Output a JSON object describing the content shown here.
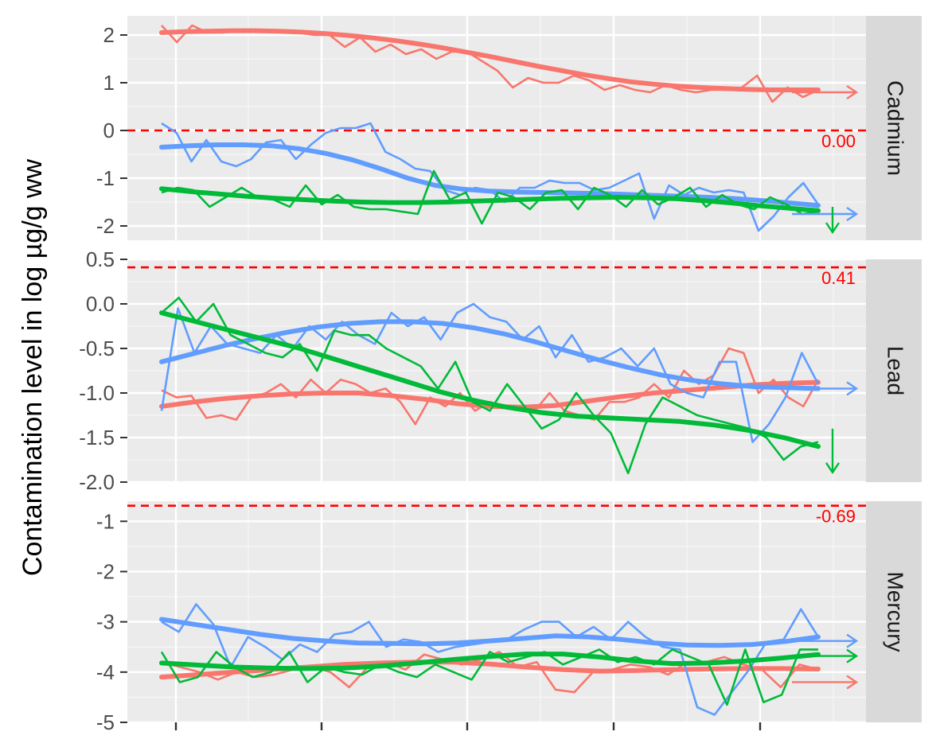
{
  "chart_data": {
    "type": "line",
    "title": "",
    "xlabel": "",
    "ylabel": "Contamination level in log µg/g ww",
    "x_ticks": [
      "",
      "",
      "",
      "",
      ""
    ],
    "x_range": [
      0,
      46
    ],
    "grid": true,
    "legend": "none",
    "colors": {
      "red": "#f8766d",
      "green": "#00ba38",
      "blue": "#619cff",
      "reference": "#ff0000"
    },
    "panels": [
      {
        "name": "Cadmium",
        "ylim": [
          -2.3,
          2.4
        ],
        "y_ticks": [
          2,
          1,
          0,
          -1,
          -2
        ],
        "y_tick_labels": [
          "2",
          "1",
          "0",
          "-1",
          "-2"
        ],
        "reference": {
          "value": 0.0,
          "label": "0.00"
        },
        "series": [
          {
            "color": "red",
            "raw": [
              2.2,
              1.85,
              2.2,
              2.05,
              2.05,
              2.1,
              2.1,
              2.1,
              2.1,
              2.05,
              2.0,
              2.0,
              1.75,
              1.95,
              1.65,
              1.8,
              1.6,
              1.7,
              1.5,
              1.65,
              1.65,
              1.45,
              1.25,
              0.9,
              1.1,
              1.0,
              1.0,
              1.15,
              1.05,
              0.85,
              0.95,
              0.85,
              0.8,
              0.95,
              0.85,
              0.8,
              0.85,
              0.85,
              0.9,
              1.15,
              0.6,
              0.9,
              0.7,
              0.85
            ],
            "smooth": [
              2.05,
              2.07,
              2.08,
              2.09,
              2.09,
              2.08,
              2.06,
              2.03,
              1.99,
              1.94,
              1.88,
              1.81,
              1.73,
              1.64,
              1.55,
              1.45,
              1.35,
              1.26,
              1.17,
              1.09,
              1.02,
              0.97,
              0.93,
              0.9,
              0.88,
              0.86,
              0.85,
              0.85,
              0.85
            ],
            "trend_arrow": "right",
            "arrow_value": 0.8
          },
          {
            "color": "blue",
            "raw": [
              0.15,
              -0.05,
              -0.65,
              -0.2,
              -0.65,
              -0.75,
              -0.6,
              -0.25,
              -0.2,
              -0.6,
              -0.3,
              -0.05,
              0.05,
              0.05,
              0.15,
              -0.45,
              -0.6,
              -0.8,
              -0.85,
              -1.25,
              -1.35,
              -1.2,
              -1.25,
              -1.5,
              -1.2,
              -1.2,
              -1.05,
              -1.1,
              -1.1,
              -1.25,
              -1.2,
              -1.05,
              -0.9,
              -1.85,
              -1.15,
              -1.35,
              -1.2,
              -1.3,
              -1.25,
              -1.3,
              -2.1,
              -1.8,
              -1.4,
              -1.1,
              -1.55
            ],
            "smooth": [
              -0.35,
              -0.32,
              -0.3,
              -0.3,
              -0.32,
              -0.38,
              -0.48,
              -0.62,
              -0.8,
              -1.0,
              -1.15,
              -1.23,
              -1.27,
              -1.29,
              -1.3,
              -1.31,
              -1.32,
              -1.34,
              -1.36,
              -1.38,
              -1.4,
              -1.43,
              -1.47,
              -1.52,
              -1.57
            ],
            "trend_arrow": "right",
            "arrow_value": -1.75
          },
          {
            "color": "green",
            "raw": [
              -1.3,
              -1.2,
              -1.25,
              -1.6,
              -1.4,
              -1.2,
              -1.4,
              -1.45,
              -1.6,
              -1.15,
              -1.55,
              -1.35,
              -1.6,
              -1.65,
              -1.65,
              -1.7,
              -1.75,
              -0.85,
              -1.45,
              -1.3,
              -1.95,
              -1.3,
              -1.4,
              -1.65,
              -1.3,
              -1.25,
              -1.65,
              -1.2,
              -1.35,
              -1.6,
              -1.25,
              -1.55,
              -1.4,
              -1.2,
              -1.6,
              -1.35,
              -1.55,
              -1.65,
              -1.4,
              -1.55,
              -1.75,
              -1.7
            ],
            "smooth": [
              -1.22,
              -1.28,
              -1.33,
              -1.38,
              -1.42,
              -1.45,
              -1.48,
              -1.5,
              -1.51,
              -1.51,
              -1.5,
              -1.48,
              -1.46,
              -1.44,
              -1.42,
              -1.41,
              -1.4,
              -1.41,
              -1.43,
              -1.47,
              -1.52,
              -1.58,
              -1.63,
              -1.68
            ],
            "trend_arrow": "down",
            "arrow_value": -1.6
          }
        ]
      },
      {
        "name": "Lead",
        "ylim": [
          -2.0,
          0.5
        ],
        "y_ticks": [
          0.5,
          0.0,
          -0.5,
          -1.0,
          -1.5,
          -2.0
        ],
        "y_tick_labels": [
          "0.5",
          "0.0",
          "-0.5",
          "-1.0",
          "-1.5",
          "-2.0"
        ],
        "reference": {
          "value": 0.41,
          "label": "0.41"
        },
        "series": [
          {
            "color": "red",
            "raw": [
              -0.97,
              -1.05,
              -1.03,
              -1.28,
              -1.25,
              -1.3,
              -1.05,
              -1.0,
              -0.9,
              -1.05,
              -0.85,
              -1.0,
              -0.85,
              -0.9,
              -1.0,
              -0.95,
              -1.1,
              -1.35,
              -1.05,
              -1.15,
              -1.0,
              -1.2,
              -1.1,
              -1.15,
              -1.15,
              -1.2,
              -1.0,
              -1.2,
              -1.25,
              -1.3,
              -1.1,
              -1.1,
              -1.05,
              -0.9,
              -1.05,
              -0.75,
              -0.9,
              -0.8,
              -0.5,
              -0.55,
              -1.0,
              -0.85,
              -1.05,
              -1.15,
              -0.85
            ],
            "smooth": [
              -1.15,
              -1.1,
              -1.06,
              -1.03,
              -1.01,
              -1.0,
              -1.0,
              -1.03,
              -1.07,
              -1.12,
              -1.15,
              -1.16,
              -1.14,
              -1.09,
              -1.04,
              -1.0,
              -0.97,
              -0.94,
              -0.91,
              -0.89,
              -0.88
            ],
            "trend_arrow": "none"
          },
          {
            "color": "blue",
            "raw": [
              -1.2,
              -0.05,
              -0.55,
              -0.25,
              -0.45,
              -0.5,
              -0.55,
              -0.35,
              -0.5,
              -0.25,
              -0.4,
              -0.2,
              -0.35,
              -0.45,
              -0.1,
              -0.25,
              -0.15,
              -0.4,
              -0.1,
              0.0,
              -0.15,
              -0.2,
              -0.4,
              -0.25,
              -0.6,
              -0.35,
              -0.65,
              -0.6,
              -0.5,
              -0.7,
              -0.5,
              -0.9,
              -1.0,
              -1.05,
              -0.65,
              -0.65,
              -1.55,
              -1.35,
              -1.05,
              -0.55,
              -0.9
            ],
            "smooth": [
              -0.65,
              -0.56,
              -0.47,
              -0.39,
              -0.32,
              -0.26,
              -0.22,
              -0.2,
              -0.2,
              -0.22,
              -0.27,
              -0.34,
              -0.43,
              -0.53,
              -0.63,
              -0.72,
              -0.8,
              -0.86,
              -0.9,
              -0.93,
              -0.94,
              -0.95
            ],
            "trend_arrow": "right",
            "arrow_value": -0.95
          },
          {
            "color": "green",
            "raw": [
              -0.1,
              0.07,
              -0.2,
              0.0,
              -0.35,
              -0.45,
              -0.55,
              -0.6,
              -0.45,
              -0.75,
              -0.3,
              -0.35,
              -0.35,
              -0.5,
              -0.6,
              -0.7,
              -0.95,
              -0.65,
              -1.1,
              -1.2,
              -0.9,
              -1.15,
              -1.4,
              -1.3,
              -1.0,
              -1.25,
              -1.45,
              -1.9,
              -1.35,
              -1.05,
              -1.15,
              -1.25,
              -1.3,
              -1.35,
              -1.4,
              -1.5,
              -1.75,
              -1.6,
              -1.55
            ],
            "smooth": [
              -0.1,
              -0.2,
              -0.3,
              -0.4,
              -0.5,
              -0.62,
              -0.74,
              -0.86,
              -0.98,
              -1.08,
              -1.16,
              -1.22,
              -1.26,
              -1.28,
              -1.3,
              -1.32,
              -1.36,
              -1.42,
              -1.5,
              -1.6
            ],
            "trend_arrow": "down",
            "arrow_value": -1.4
          }
        ]
      },
      {
        "name": "Mercury",
        "ylim": [
          -5.0,
          -0.6
        ],
        "y_ticks": [
          -1,
          -2,
          -3,
          -4,
          -5
        ],
        "y_tick_labels": [
          "-1",
          "-2",
          "-3",
          "-4",
          "-5"
        ],
        "reference": {
          "value": -0.69,
          "label": "-0.69"
        },
        "series": [
          {
            "color": "red",
            "raw": [
              -3.8,
              -3.9,
              -4.0,
              -4.15,
              -4.0,
              -4.1,
              -4.05,
              -3.95,
              -3.9,
              -4.0,
              -4.3,
              -3.9,
              -3.8,
              -3.95,
              -3.65,
              -3.75,
              -3.85,
              -3.75,
              -3.6,
              -3.9,
              -3.8,
              -4.35,
              -4.4,
              -4.0,
              -3.95,
              -3.85,
              -3.9,
              -4.05,
              -3.8,
              -3.8,
              -3.7,
              -3.85,
              -3.95,
              -4.3,
              -3.85,
              -3.95
            ],
            "smooth": [
              -4.1,
              -4.05,
              -4.0,
              -3.95,
              -3.9,
              -3.85,
              -3.82,
              -3.8,
              -3.8,
              -3.84,
              -3.9,
              -3.95,
              -3.98,
              -3.97,
              -3.95,
              -3.94,
              -3.93,
              -3.93,
              -3.94
            ],
            "trend_arrow": "right",
            "arrow_value": -4.2
          },
          {
            "color": "blue",
            "raw": [
              -3.0,
              -3.2,
              -2.65,
              -3.05,
              -3.9,
              -3.3,
              -3.5,
              -3.75,
              -3.45,
              -3.6,
              -3.25,
              -3.2,
              -3.0,
              -3.5,
              -3.35,
              -3.4,
              -3.6,
              -3.5,
              -3.45,
              -3.4,
              -3.35,
              -3.15,
              -3.0,
              -3.0,
              -3.3,
              -3.1,
              -3.35,
              -3.0,
              -3.3,
              -3.5,
              -3.55,
              -4.7,
              -4.85,
              -4.4,
              -3.95,
              -3.4,
              -3.35,
              -2.75,
              -3.3
            ],
            "smooth": [
              -2.95,
              -3.05,
              -3.15,
              -3.25,
              -3.33,
              -3.38,
              -3.42,
              -3.43,
              -3.44,
              -3.42,
              -3.38,
              -3.33,
              -3.28,
              -3.3,
              -3.35,
              -3.42,
              -3.46,
              -3.47,
              -3.45,
              -3.39,
              -3.3
            ],
            "trend_arrow": "right",
            "arrow_value": -3.38
          },
          {
            "color": "green",
            "raw": [
              -3.6,
              -4.2,
              -4.1,
              -3.6,
              -3.9,
              -4.1,
              -4.0,
              -3.6,
              -4.2,
              -3.9,
              -4.0,
              -4.05,
              -3.85,
              -4.0,
              -4.1,
              -3.85,
              -4.0,
              -4.15,
              -3.6,
              -3.8,
              -3.7,
              -3.6,
              -3.85,
              -3.7,
              -3.55,
              -3.8,
              -3.7,
              -3.85,
              -3.55,
              -3.7,
              -3.85,
              -4.65,
              -3.55,
              -4.6,
              -4.45,
              -3.55,
              -3.55
            ],
            "smooth": [
              -3.82,
              -3.86,
              -3.9,
              -3.92,
              -3.93,
              -3.92,
              -3.88,
              -3.82,
              -3.75,
              -3.69,
              -3.64,
              -3.64,
              -3.7,
              -3.78,
              -3.83,
              -3.82,
              -3.78,
              -3.72,
              -3.65
            ],
            "trend_arrow": "right",
            "arrow_value": -3.68
          }
        ]
      }
    ]
  }
}
